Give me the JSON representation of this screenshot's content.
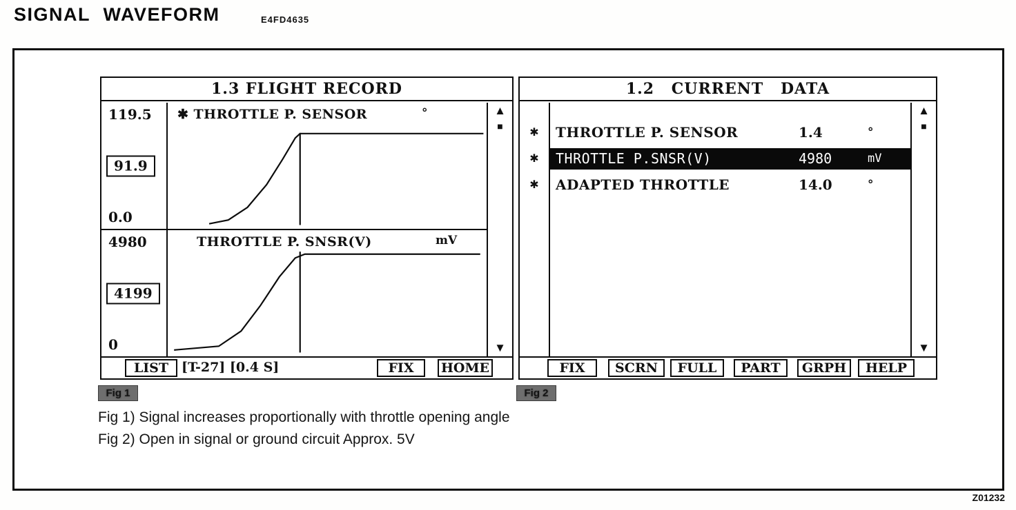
{
  "page": {
    "title": "SIGNAL WAVEFORM",
    "code": "E4FD4635",
    "ref": "Z01232"
  },
  "flight_record": {
    "title": "1.3 FLIGHT RECORD",
    "graph1": {
      "marker": "✱",
      "label": "THROTTLE P. SENSOR",
      "unit": "°",
      "scale_max": "119.5",
      "cursor_value": "91.9",
      "scale_min": "0.0"
    },
    "graph2": {
      "label": "THROTTLE P. SNSR(V)",
      "unit": "mV",
      "scale_max": "4980",
      "cursor_value": "4199",
      "scale_min": "0"
    },
    "toolbar": {
      "list": "LIST",
      "range": "[T-27] [0.4 S]",
      "fix": "FIX",
      "home": "HOME"
    },
    "scrollbar": {
      "up": "▲",
      "thumb": "■",
      "down": "▼"
    }
  },
  "current_data": {
    "title": "1.2 CURRENT DATA",
    "rows": [
      {
        "marker": "✱",
        "label": "THROTTLE P. SENSOR",
        "value": "1.4",
        "unit": "°"
      },
      {
        "marker": "✱",
        "label": "THROTTLE P.SNSR(V)",
        "value": "4980",
        "unit": "mV"
      },
      {
        "marker": "✱",
        "label": "ADAPTED THROTTLE",
        "value": "14.0",
        "unit": "°"
      }
    ],
    "toolbar": {
      "fix": "FIX",
      "scrn": "SCRN",
      "full": "FULL",
      "part": "PART",
      "grph": "GRPH",
      "help": "HELP"
    },
    "scrollbar": {
      "up": "▲",
      "thumb": "■",
      "down": "▼"
    }
  },
  "figures": {
    "badge1": "Fig 1",
    "badge2": "Fig 2",
    "caption1": "Fig 1) Signal increases proportionally with throttle opening angle",
    "caption2": "Fig 2) Open in signal or ground circuit Approx. 5V"
  },
  "chart_data": [
    {
      "type": "line",
      "title": "THROTTLE P. SENSOR",
      "ylabel": "degrees",
      "ylim": [
        0.0,
        119.5
      ],
      "cursor_value": 91.9,
      "time_window": "[T-27] [0.4 S]",
      "description": "Throttle position signal rises with increasing slope from 0 then holds flat at maximum after cursor",
      "points_norm": [
        [
          0.13,
          0.96
        ],
        [
          0.19,
          0.93
        ],
        [
          0.25,
          0.83
        ],
        [
          0.31,
          0.65
        ],
        [
          0.36,
          0.45
        ],
        [
          0.4,
          0.28
        ],
        [
          0.415,
          0.245
        ],
        [
          0.99,
          0.245
        ]
      ],
      "cursor_x_norm": 0.415,
      "cursor_span_norm": [
        0.24,
        0.97
      ]
    },
    {
      "type": "line",
      "title": "THROTTLE P. SNSR(V)",
      "ylabel": "mV",
      "ylim": [
        0,
        4980
      ],
      "cursor_value": 4199,
      "time_window": "[T-27] [0.4 S]",
      "description": "Throttle position sensor voltage rises from 0 mV then holds flat near 4980 mV after cursor",
      "points_norm": [
        [
          0.02,
          0.95
        ],
        [
          0.16,
          0.92
        ],
        [
          0.23,
          0.8
        ],
        [
          0.29,
          0.6
        ],
        [
          0.35,
          0.37
        ],
        [
          0.4,
          0.22
        ],
        [
          0.43,
          0.19
        ],
        [
          0.98,
          0.19
        ]
      ],
      "cursor_x_norm": 0.415,
      "cursor_span_norm": [
        0.17,
        0.97
      ]
    }
  ]
}
